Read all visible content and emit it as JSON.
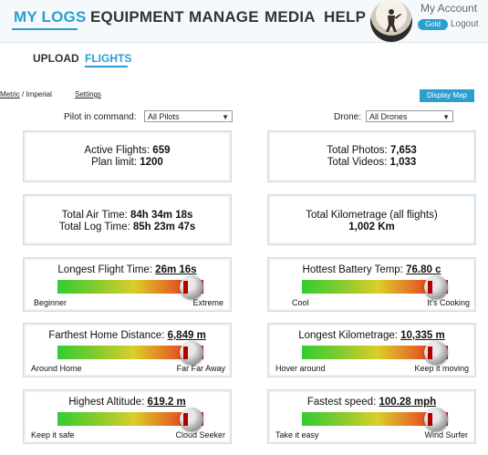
{
  "nav": {
    "items": [
      "MY LOGS",
      "EQUIPMENT",
      "MANAGE",
      "MEDIA",
      "HELP"
    ],
    "account_label": "My Account",
    "badge": "Gold",
    "logout": "Logout"
  },
  "subnav": {
    "upload": "UPLOAD",
    "flights": "FLIGHTS"
  },
  "units": {
    "metric": "Metric",
    "sep": " / ",
    "imperial": "Imperial"
  },
  "settings": "Settings",
  "display_map": "Display Map",
  "filters": {
    "pilot_label": "Pilot in command:",
    "pilot_value": "All Pilots",
    "drone_label": "Drone:",
    "drone_value": "All Drones"
  },
  "stats": {
    "active_flights_label": "Active Flights:",
    "active_flights_value": "659",
    "plan_limit_label": "Plan limit:",
    "plan_limit_value": "1200",
    "total_photos_label": "Total Photos:",
    "total_photos_value": "7,653",
    "total_videos_label": "Total Videos:",
    "total_videos_value": "1,033",
    "air_time_label": "Total Air Time:",
    "air_time_value": "84h 34m 18s",
    "log_time_label": "Total Log Time:",
    "log_time_value": "85h 23m 47s",
    "km_label": "Total Kilometrage (all flights)",
    "km_value": "1,002 Km"
  },
  "gauges": [
    {
      "title": "Longest Flight Time:",
      "value": "26m 16s",
      "left": "Beginner",
      "right": "Extreme",
      "level": 0.92
    },
    {
      "title": "Hottest Battery Temp:",
      "value": "76.80 c",
      "left": "Cool",
      "right": "It's Cooking",
      "level": 0.92
    },
    {
      "title": "Farthest Home Distance:",
      "value": "6,849 m",
      "left": "Around Home",
      "right": "Far Far Away",
      "level": 0.92
    },
    {
      "title": "Longest Kilometrage:",
      "value": "10,335 m",
      "left": "Hover around",
      "right": "Keep it moving",
      "level": 0.92
    },
    {
      "title": "Highest Altitude:",
      "value": "619.2 m",
      "left": "Keep it safe",
      "right": "Cloud Seeker",
      "level": 0.92
    },
    {
      "title": "Fastest speed:",
      "value": "100.28 mph",
      "left": "Take it easy",
      "right": "Wind Surfer",
      "level": 0.92
    }
  ],
  "colors": {
    "accent": "#2a9fd0",
    "knob_marker": "#b00000"
  }
}
